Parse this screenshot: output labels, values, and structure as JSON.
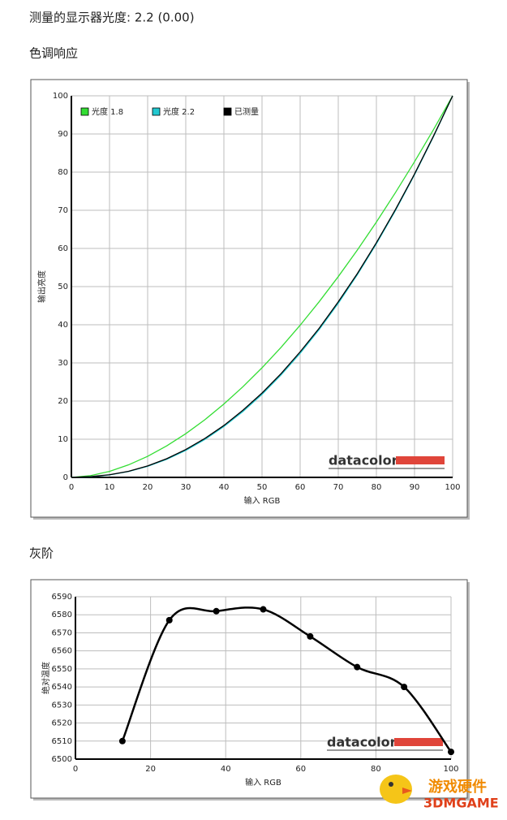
{
  "header": {
    "title": "测量的显示器光度:  2.2 (0.00)",
    "section_1": "色调响应",
    "section_2": "灰阶"
  },
  "watermark": {
    "title": "游戏硬件",
    "subtitle": "3DMGAME"
  },
  "chart_data": [
    {
      "type": "line",
      "xlabel": "输入 RGB",
      "ylabel": "输出亮度",
      "logo": "datacolor",
      "x": [
        0,
        5,
        10,
        15,
        20,
        25,
        30,
        35,
        40,
        45,
        50,
        55,
        60,
        65,
        70,
        75,
        80,
        85,
        90,
        95,
        100
      ],
      "series": [
        {
          "name": "光度 1.8",
          "color": "#33dd33",
          "values": [
            0,
            0.46,
            1.58,
            3.29,
            5.52,
            8.25,
            11.45,
            15.11,
            19.22,
            23.76,
            28.72,
            34.09,
            39.87,
            46.05,
            52.62,
            59.58,
            66.92,
            74.64,
            82.72,
            91.18,
            100
          ]
        },
        {
          "name": "光度 2.2",
          "color": "#22c8d0",
          "values": [
            0,
            0.14,
            0.63,
            1.54,
            2.9,
            4.74,
            7.07,
            9.93,
            13.32,
            17.26,
            21.76,
            26.84,
            32.5,
            38.76,
            45.62,
            53.1,
            61.21,
            69.94,
            79.31,
            89.33,
            100
          ]
        },
        {
          "name": "已测量",
          "color": "#000000",
          "values": [
            0,
            0.2,
            0.7,
            1.6,
            3.0,
            4.9,
            7.3,
            10.2,
            13.6,
            17.6,
            22.1,
            27.2,
            32.9,
            39.1,
            46.0,
            53.4,
            61.5,
            70.2,
            79.5,
            89.5,
            100
          ]
        }
      ],
      "xlim": [
        0,
        100
      ],
      "xticks": [
        0,
        10,
        20,
        30,
        40,
        50,
        60,
        70,
        80,
        90,
        100
      ],
      "ylim": [
        0,
        100
      ],
      "yticks": [
        0,
        10,
        20,
        30,
        40,
        50,
        60,
        70,
        80,
        90,
        100
      ],
      "grid": true,
      "legend": "upper left"
    },
    {
      "type": "line",
      "xlabel": "输入 RGB",
      "ylabel": "绝对温度",
      "logo": "datacolor",
      "x": [
        12.5,
        25,
        37.5,
        50,
        62.5,
        75,
        87.5,
        100
      ],
      "series": [
        {
          "color": "#000000",
          "values": [
            6510,
            6577,
            6582,
            6583,
            6568,
            6551,
            6540,
            6504
          ]
        }
      ],
      "markers": true,
      "xlim": [
        0,
        100
      ],
      "xticks": [
        0,
        20,
        40,
        60,
        80,
        100
      ],
      "ylim": [
        6500,
        6590
      ],
      "yticks": [
        6500,
        6510,
        6520,
        6530,
        6540,
        6550,
        6560,
        6570,
        6580,
        6590
      ],
      "grid": true
    }
  ]
}
